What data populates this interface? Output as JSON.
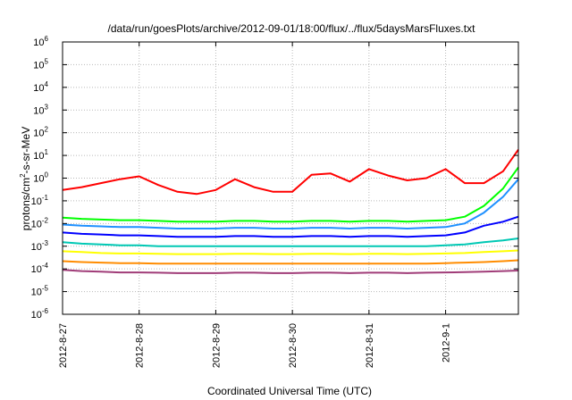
{
  "chart_data": {
    "type": "line",
    "title": "/data/run/goesPlots/archive/2012-09-01/18:00/flux/../flux/5daysMarsFluxes.txt",
    "xlabel": "Coordinated Universal Time (UTC)",
    "ylabel_main": "protons/cm",
    "ylabel_sup": "2",
    "ylabel_tail": "-s-sr-MeV",
    "x_scale": "time",
    "x_range_days": [
      0,
      5.95
    ],
    "x_ticks": [
      {
        "day": 0,
        "label": "2012-8-27"
      },
      {
        "day": 1,
        "label": "2012-8-28"
      },
      {
        "day": 2,
        "label": "2012-8-29"
      },
      {
        "day": 3,
        "label": "2012-8-30"
      },
      {
        "day": 4,
        "label": "2012-8-31"
      },
      {
        "day": 5,
        "label": "2012-9-1"
      }
    ],
    "y_scale": "log",
    "ylim": [
      1e-06,
      1000000.0
    ],
    "y_ticks": [
      {
        "exp": -6,
        "base": "10",
        "sup": "-6"
      },
      {
        "exp": -5,
        "base": "10",
        "sup": "-5"
      },
      {
        "exp": -4,
        "base": "10",
        "sup": "-4"
      },
      {
        "exp": -3,
        "base": "10",
        "sup": "-3"
      },
      {
        "exp": -2,
        "base": "10",
        "sup": "-2"
      },
      {
        "exp": -1,
        "base": "10",
        "sup": "-1"
      },
      {
        "exp": 0,
        "base": "10",
        "sup": "0"
      },
      {
        "exp": 1,
        "base": "10",
        "sup": "1"
      },
      {
        "exp": 2,
        "base": "10",
        "sup": "2"
      },
      {
        "exp": 3,
        "base": "10",
        "sup": "3"
      },
      {
        "exp": 4,
        "base": "10",
        "sup": "4"
      },
      {
        "exp": 5,
        "base": "10",
        "sup": "5"
      },
      {
        "exp": 6,
        "base": "10",
        "sup": "6"
      }
    ],
    "grid": true,
    "series": [
      {
        "color": "#ff0000",
        "x": [
          0,
          0.25,
          0.5,
          0.75,
          1,
          1.25,
          1.5,
          1.75,
          2,
          2.25,
          2.5,
          2.75,
          3,
          3.25,
          3.5,
          3.75,
          4,
          4.25,
          4.5,
          4.75,
          5,
          5.25,
          5.5,
          5.75,
          5.95
        ],
        "y": [
          0.3,
          0.4,
          0.6,
          0.9,
          1.2,
          0.5,
          0.25,
          0.2,
          0.3,
          0.9,
          0.4,
          0.25,
          0.25,
          1.4,
          1.6,
          0.7,
          2.5,
          1.3,
          0.8,
          1.0,
          2.5,
          0.6,
          0.6,
          2.0,
          18
        ]
      },
      {
        "color": "#00ff00",
        "x": [
          0,
          0.25,
          0.5,
          0.75,
          1,
          1.25,
          1.5,
          1.75,
          2,
          2.25,
          2.5,
          2.75,
          3,
          3.25,
          3.5,
          3.75,
          4,
          4.25,
          4.5,
          4.75,
          5,
          5.25,
          5.5,
          5.75,
          5.95
        ],
        "y": [
          0.018,
          0.016,
          0.015,
          0.014,
          0.014,
          0.013,
          0.012,
          0.012,
          0.012,
          0.013,
          0.013,
          0.012,
          0.012,
          0.013,
          0.013,
          0.012,
          0.013,
          0.013,
          0.012,
          0.013,
          0.014,
          0.02,
          0.06,
          0.35,
          3.0
        ]
      },
      {
        "color": "#1e90ff",
        "x": [
          0,
          0.25,
          0.5,
          0.75,
          1,
          1.25,
          1.5,
          1.75,
          2,
          2.25,
          2.5,
          2.75,
          3,
          3.25,
          3.5,
          3.75,
          4,
          4.25,
          4.5,
          4.75,
          5,
          5.25,
          5.5,
          5.75,
          5.95
        ],
        "y": [
          0.009,
          0.008,
          0.0075,
          0.007,
          0.007,
          0.0065,
          0.006,
          0.006,
          0.006,
          0.0065,
          0.0065,
          0.006,
          0.006,
          0.0065,
          0.0065,
          0.006,
          0.0065,
          0.0065,
          0.006,
          0.0065,
          0.007,
          0.01,
          0.03,
          0.15,
          0.9
        ]
      },
      {
        "color": "#0000ff",
        "x": [
          0,
          0.25,
          0.5,
          0.75,
          1,
          1.25,
          1.5,
          1.75,
          2,
          2.25,
          2.5,
          2.75,
          3,
          3.25,
          3.5,
          3.75,
          4,
          4.25,
          4.5,
          4.75,
          5,
          5.25,
          5.5,
          5.75,
          5.95
        ],
        "y": [
          0.004,
          0.0035,
          0.0033,
          0.003,
          0.003,
          0.0028,
          0.0026,
          0.0026,
          0.0026,
          0.0028,
          0.0028,
          0.0026,
          0.0026,
          0.0028,
          0.0028,
          0.0026,
          0.0028,
          0.0028,
          0.0026,
          0.0028,
          0.003,
          0.004,
          0.008,
          0.012,
          0.02
        ]
      },
      {
        "color": "#00c8b4",
        "x": [
          0,
          0.25,
          0.5,
          0.75,
          1,
          1.25,
          1.5,
          1.75,
          2,
          2.25,
          2.5,
          2.75,
          3,
          3.25,
          3.5,
          3.75,
          4,
          4.25,
          4.5,
          4.75,
          5,
          5.25,
          5.5,
          5.75,
          5.95
        ],
        "y": [
          0.0015,
          0.0013,
          0.0012,
          0.0011,
          0.0011,
          0.001,
          0.001,
          0.001,
          0.001,
          0.001,
          0.001,
          0.001,
          0.001,
          0.001,
          0.001,
          0.001,
          0.001,
          0.001,
          0.001,
          0.001,
          0.0011,
          0.0012,
          0.0015,
          0.0018,
          0.0022
        ]
      },
      {
        "color": "#ffff00",
        "x": [
          0,
          0.25,
          0.5,
          0.75,
          1,
          1.25,
          1.5,
          1.75,
          2,
          2.25,
          2.5,
          2.75,
          3,
          3.25,
          3.5,
          3.75,
          4,
          4.25,
          4.5,
          4.75,
          5,
          5.25,
          5.5,
          5.75,
          5.95
        ],
        "y": [
          0.0006,
          0.00055,
          0.0005,
          0.00048,
          0.00048,
          0.00046,
          0.00045,
          0.00045,
          0.00045,
          0.00046,
          0.00046,
          0.00045,
          0.00045,
          0.00046,
          0.00046,
          0.00045,
          0.00046,
          0.00046,
          0.00045,
          0.00046,
          0.00048,
          0.0005,
          0.00055,
          0.0006,
          0.00065
        ]
      },
      {
        "color": "#ff8c00",
        "x": [
          0,
          0.25,
          0.5,
          0.75,
          1,
          1.25,
          1.5,
          1.75,
          2,
          2.25,
          2.5,
          2.75,
          3,
          3.25,
          3.5,
          3.75,
          4,
          4.25,
          4.5,
          4.75,
          5,
          5.25,
          5.5,
          5.75,
          5.95
        ],
        "y": [
          0.00022,
          0.0002,
          0.00019,
          0.00018,
          0.00018,
          0.00017,
          0.00017,
          0.00017,
          0.00017,
          0.00017,
          0.00017,
          0.00017,
          0.00017,
          0.00017,
          0.00017,
          0.00017,
          0.00017,
          0.00017,
          0.00017,
          0.00017,
          0.00018,
          0.00019,
          0.0002,
          0.00022,
          0.00024
        ]
      },
      {
        "color": "#a03c78",
        "x": [
          0,
          0.25,
          0.5,
          0.75,
          1,
          1.25,
          1.5,
          1.75,
          2,
          2.25,
          2.5,
          2.75,
          3,
          3.25,
          3.5,
          3.75,
          4,
          4.25,
          4.5,
          4.75,
          5,
          5.25,
          5.5,
          5.75,
          5.95
        ],
        "y": [
          9e-05,
          8e-05,
          7.5e-05,
          7e-05,
          7e-05,
          6.8e-05,
          6.5e-05,
          6.5e-05,
          6.5e-05,
          6.8e-05,
          6.8e-05,
          6.5e-05,
          6.5e-05,
          6.8e-05,
          6.8e-05,
          6.5e-05,
          6.8e-05,
          6.8e-05,
          6.5e-05,
          6.8e-05,
          7e-05,
          7.2e-05,
          7.5e-05,
          8e-05,
          8.5e-05
        ]
      }
    ]
  }
}
